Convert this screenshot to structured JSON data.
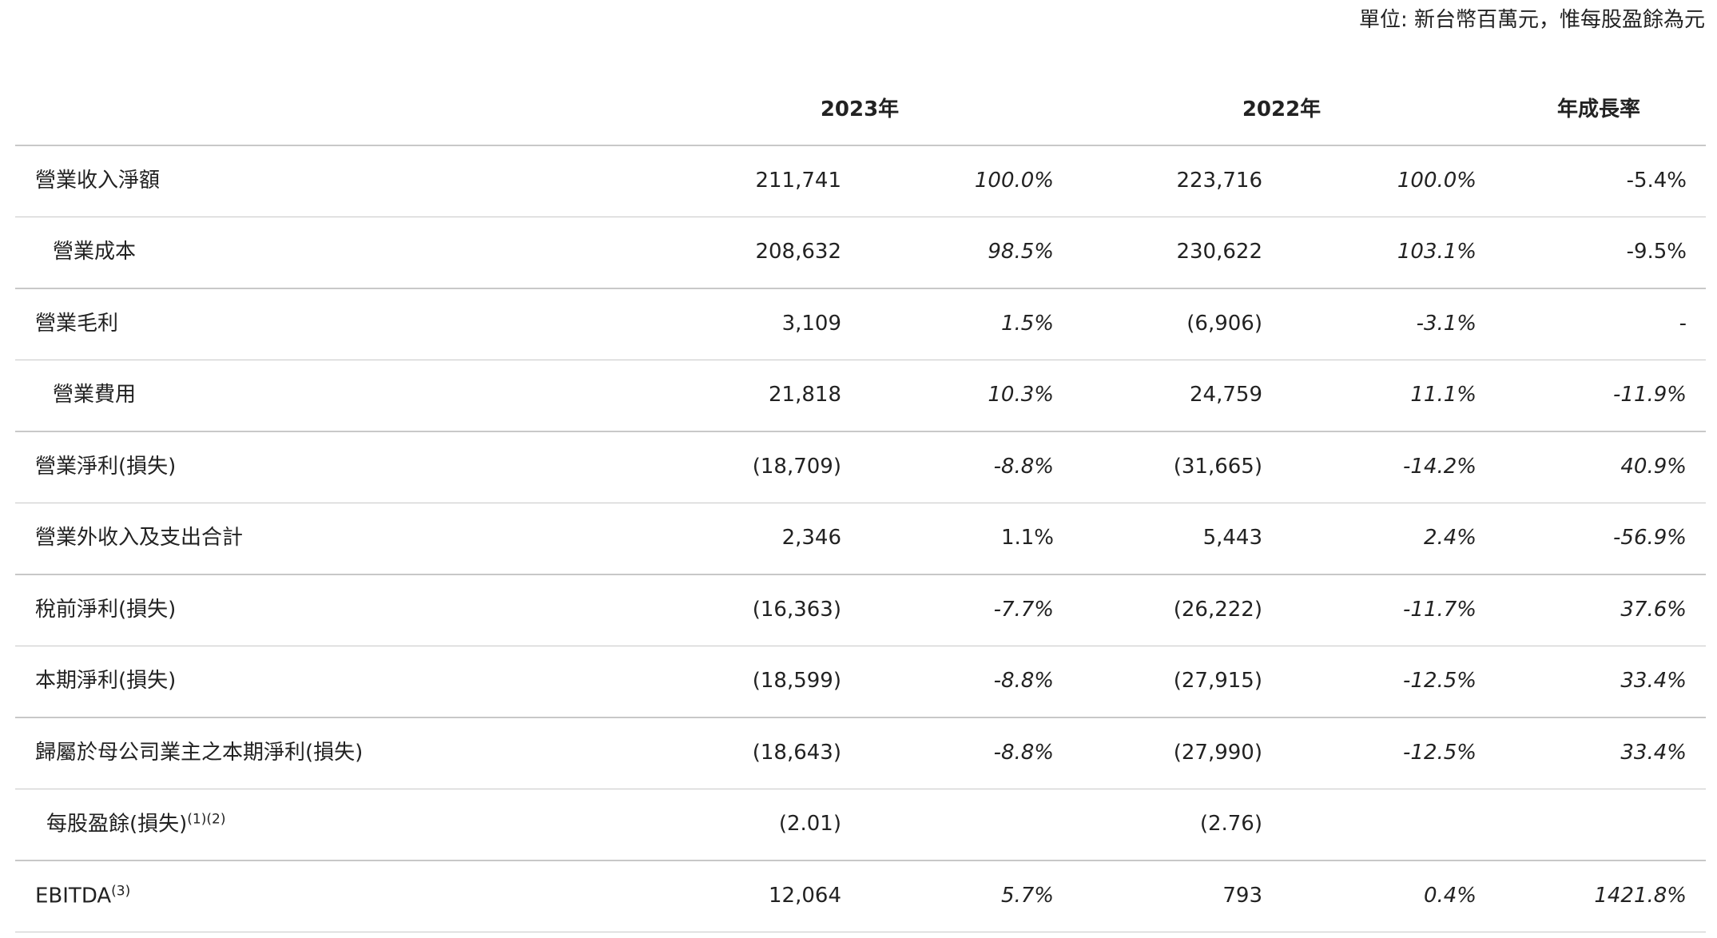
{
  "header": {
    "unit": "單位: 新台幣百萬元，惟每股盈餘為元"
  },
  "table": {
    "columns": [
      "2023年",
      "2022年",
      "年成長率"
    ],
    "rows": [
      {
        "label": "營業收入淨額",
        "values": [
          "211,741",
          "100.0%",
          "223,716",
          "100.0%",
          "-5.4%"
        ]
      },
      {
        "label": "營業成本",
        "values": [
          "208,632",
          "98.5%",
          "230,622",
          "103.1%",
          "-9.5%"
        ]
      },
      {
        "label": "營業毛利",
        "values": [
          "3,109",
          "1.5%",
          "(6,906)",
          "-3.1%",
          "-"
        ]
      },
      {
        "label": "營業費用",
        "values": [
          "21,818",
          "10.3%",
          "24,759",
          "11.1%",
          "-11.9%"
        ]
      },
      {
        "label": "營業淨利(損失)",
        "values": [
          "(18,709)",
          "-8.8%",
          "(31,665)",
          "-14.2%",
          "40.9%"
        ]
      },
      {
        "label": "營業外收入及支出合計",
        "values": [
          "2,346",
          "1.1%",
          "5,443",
          "2.4%",
          "-56.9%"
        ]
      },
      {
        "label": "稅前淨利(損失)",
        "values": [
          "(16,363)",
          "-7.7%",
          "(26,222)",
          "-11.7%",
          "37.6%"
        ]
      },
      {
        "label": "本期淨利(損失)",
        "values": [
          "(18,599)",
          "-8.8%",
          "(27,915)",
          "-12.5%",
          "33.4%"
        ]
      },
      {
        "label": "歸屬於母公司業主之本期淨利(損失)",
        "values": [
          "(18,643)",
          "-8.8%",
          "(27,990)",
          "-12.5%",
          "33.4%"
        ]
      },
      {
        "label": "每股盈餘(損失)",
        "note": "(1)(2)",
        "values": [
          "(2.01)",
          "(2.76)"
        ]
      },
      {
        "label": "EBITDA",
        "note": "(3)",
        "values": [
          "12,064",
          "5.7%",
          "793",
          "0.4%",
          "1421.8%"
        ]
      }
    ]
  }
}
